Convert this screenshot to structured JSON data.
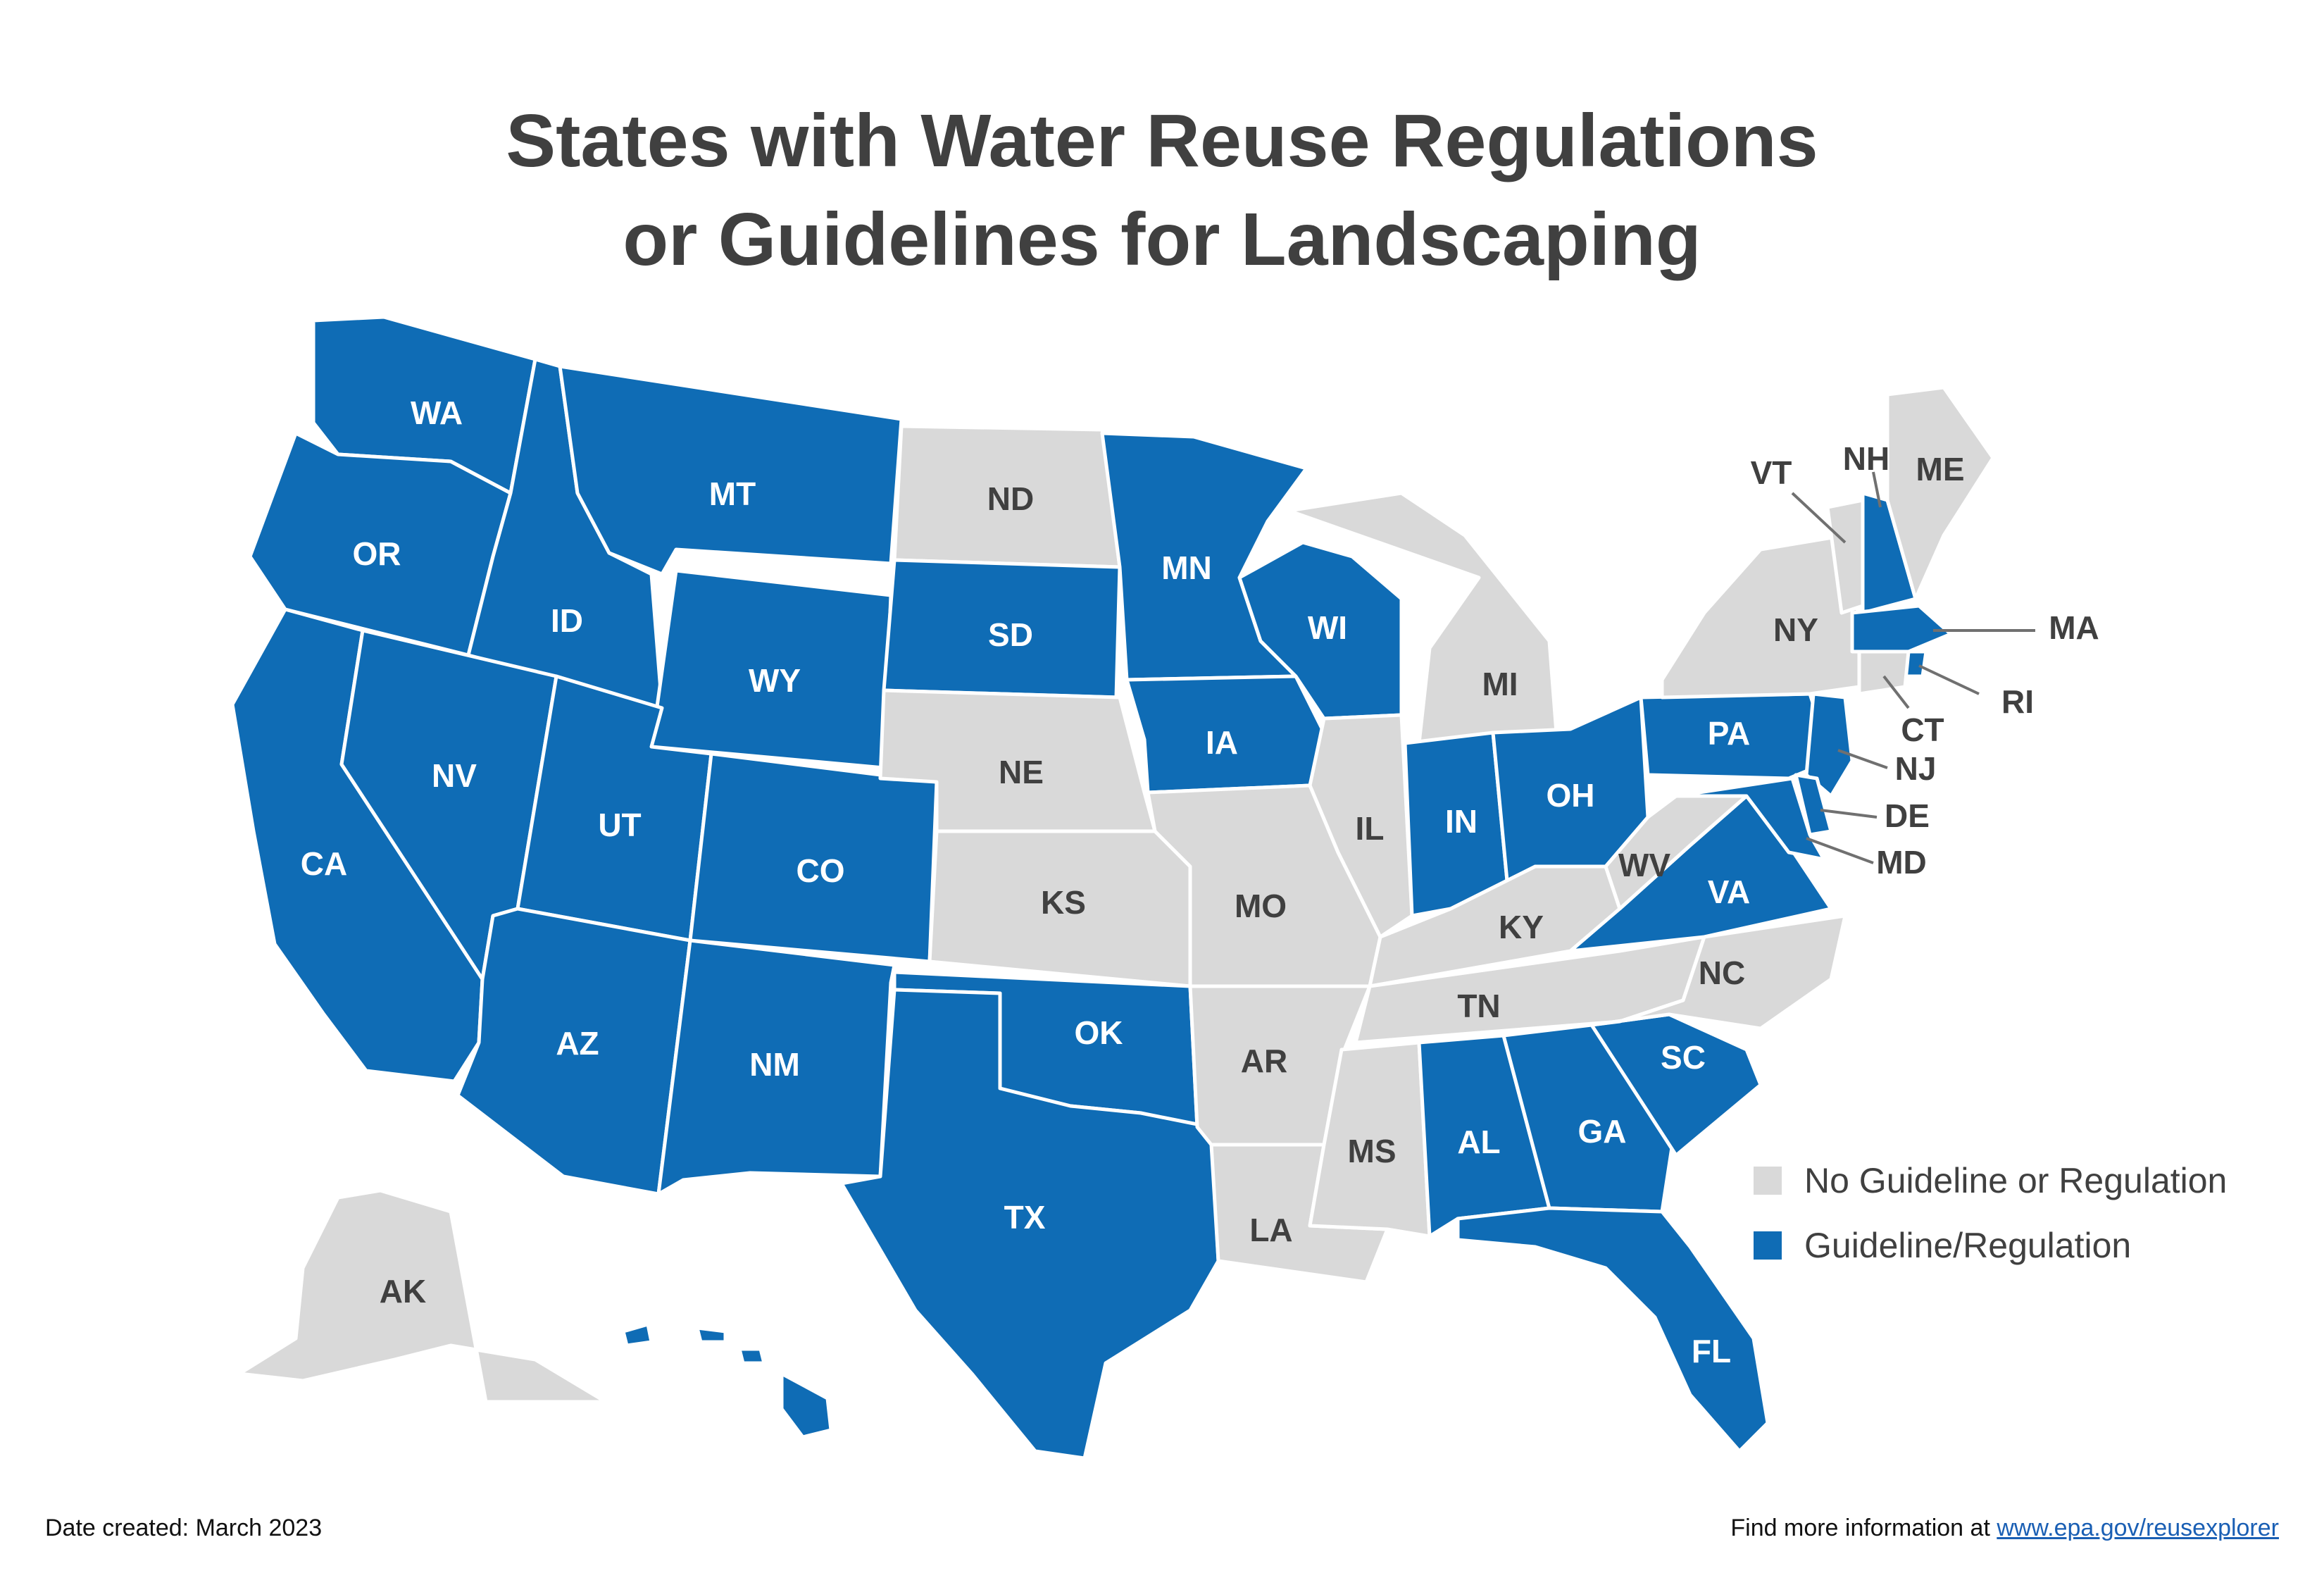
{
  "title": {
    "line1": "States with Water Reuse Regulations",
    "line2": "or Guidelines for Landscaping"
  },
  "colors": {
    "regulated": "#0f6cb5",
    "none": "#d9d9d9"
  },
  "legend": [
    {
      "key": "none",
      "label": "No Guideline or Regulation"
    },
    {
      "key": "regulated",
      "label": "Guideline/Regulation"
    }
  ],
  "states": [
    {
      "code": "WA",
      "status": "regulated"
    },
    {
      "code": "OR",
      "status": "regulated"
    },
    {
      "code": "CA",
      "status": "regulated"
    },
    {
      "code": "ID",
      "status": "regulated"
    },
    {
      "code": "NV",
      "status": "regulated"
    },
    {
      "code": "MT",
      "status": "regulated"
    },
    {
      "code": "WY",
      "status": "regulated"
    },
    {
      "code": "UT",
      "status": "regulated"
    },
    {
      "code": "AZ",
      "status": "regulated"
    },
    {
      "code": "CO",
      "status": "regulated"
    },
    {
      "code": "NM",
      "status": "regulated"
    },
    {
      "code": "ND",
      "status": "none"
    },
    {
      "code": "SD",
      "status": "regulated"
    },
    {
      "code": "NE",
      "status": "none"
    },
    {
      "code": "KS",
      "status": "none"
    },
    {
      "code": "OK",
      "status": "regulated"
    },
    {
      "code": "TX",
      "status": "regulated"
    },
    {
      "code": "MN",
      "status": "regulated"
    },
    {
      "code": "IA",
      "status": "regulated"
    },
    {
      "code": "MO",
      "status": "none"
    },
    {
      "code": "AR",
      "status": "none"
    },
    {
      "code": "LA",
      "status": "none"
    },
    {
      "code": "WI",
      "status": "regulated"
    },
    {
      "code": "IL",
      "status": "none"
    },
    {
      "code": "MI",
      "status": "none"
    },
    {
      "code": "IN",
      "status": "regulated"
    },
    {
      "code": "OH",
      "status": "regulated"
    },
    {
      "code": "KY",
      "status": "none"
    },
    {
      "code": "TN",
      "status": "none"
    },
    {
      "code": "MS",
      "status": "none"
    },
    {
      "code": "AL",
      "status": "regulated"
    },
    {
      "code": "GA",
      "status": "regulated"
    },
    {
      "code": "FL",
      "status": "regulated"
    },
    {
      "code": "SC",
      "status": "regulated"
    },
    {
      "code": "NC",
      "status": "none"
    },
    {
      "code": "VA",
      "status": "regulated"
    },
    {
      "code": "WV",
      "status": "none"
    },
    {
      "code": "PA",
      "status": "regulated"
    },
    {
      "code": "NY",
      "status": "none"
    },
    {
      "code": "VT",
      "status": "none"
    },
    {
      "code": "NH",
      "status": "regulated"
    },
    {
      "code": "ME",
      "status": "none"
    },
    {
      "code": "MA",
      "status": "regulated"
    },
    {
      "code": "RI",
      "status": "regulated"
    },
    {
      "code": "CT",
      "status": "none"
    },
    {
      "code": "NJ",
      "status": "regulated"
    },
    {
      "code": "DE",
      "status": "regulated"
    },
    {
      "code": "MD",
      "status": "regulated"
    },
    {
      "code": "AK",
      "status": "none"
    },
    {
      "code": "HI",
      "status": "regulated"
    }
  ],
  "footer": {
    "date": "Date created: March 2023",
    "info_prefix": "Find more information at ",
    "link_text": "www.epa.gov/reusexplorer"
  }
}
